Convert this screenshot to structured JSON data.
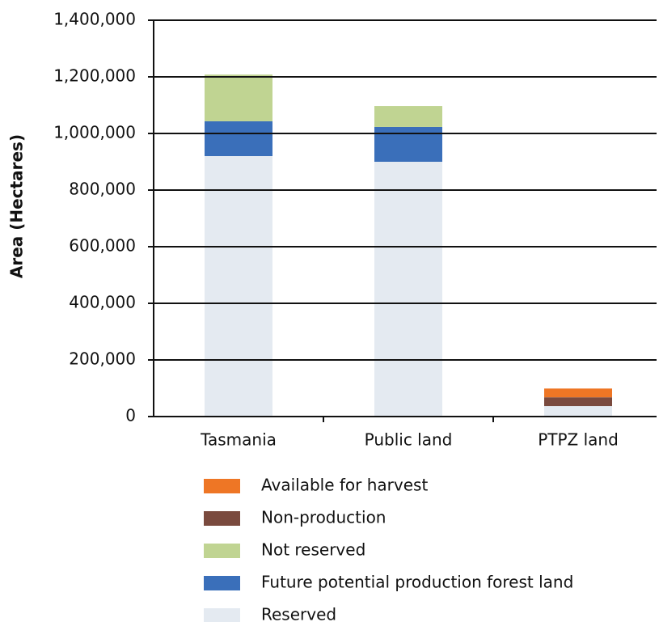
{
  "chart_data": {
    "type": "stacked_bar",
    "y_label": "Area (Hectares)",
    "categories": [
      "Tasmania",
      "Public land",
      "PTPZ land"
    ],
    "series": [
      {
        "name": "Reserved",
        "color": "#e4eaf1",
        "values": [
          920000,
          900000,
          37000
        ]
      },
      {
        "name": "Future potential production forest land",
        "color": "#3a6fba",
        "values": [
          123000,
          123000,
          null
        ]
      },
      {
        "name": "Not reserved",
        "color": "#c0d492",
        "values": [
          165000,
          74000,
          null
        ]
      },
      {
        "name": "Non-production",
        "color": "#7a4a3e",
        "values": [
          null,
          null,
          31000
        ]
      },
      {
        "name": "Available for harvest",
        "color": "#ee7625",
        "values": [
          null,
          null,
          31000
        ]
      }
    ],
    "ylim": [
      0,
      1400000
    ],
    "yticks": [
      0,
      {
        "value": 200000,
        "label": "200,000"
      },
      {
        "value": 400000,
        "label": "400,000"
      },
      {
        "value": 600000,
        "label": "600,000"
      },
      {
        "value": 800000,
        "label": "800,000"
      },
      {
        "value": 1000000,
        "label": "1,000,000"
      },
      {
        "value": 1200000,
        "label": "1,200,000"
      },
      {
        "value": 1400000,
        "label": "1,400,000"
      }
    ],
    "grid": true,
    "legend": "bottom"
  }
}
